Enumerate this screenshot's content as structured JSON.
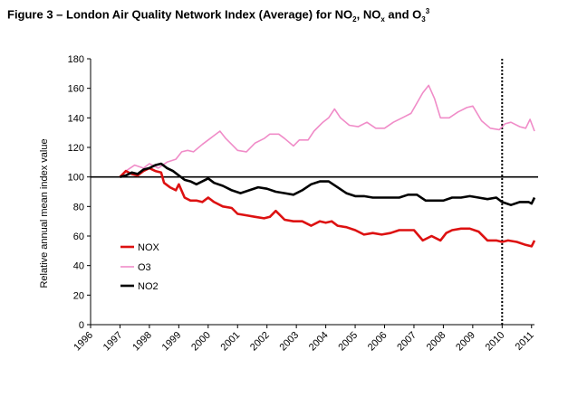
{
  "figure": {
    "title_main": "Figure 3 – London Air Quality Network Index (Average) for NO",
    "title_sub1": "2",
    "title_mid1": ", NO",
    "title_sub2": "x",
    "title_mid2": " and O",
    "title_sub3": "3",
    "title_sup": "3"
  },
  "chart_data": {
    "type": "line",
    "title": "Figure 3 – London Air Quality Network Index (Average) for NO2, NOx and O3",
    "xlabel": "",
    "ylabel": "Relative annual mean index value",
    "xlim": [
      1996,
      2011.1
    ],
    "ylim": [
      0,
      180
    ],
    "yticks": [
      0,
      20,
      40,
      60,
      80,
      100,
      120,
      140,
      160,
      180
    ],
    "xticks": [
      "1996",
      "1997",
      "1998",
      "1999",
      "2000",
      "2001",
      "2002",
      "2003",
      "2004",
      "2005",
      "2006",
      "2007",
      "2008",
      "2009",
      "2010",
      "2011"
    ],
    "reference_line": 100,
    "vertical_marker": 2010,
    "legend_position": "lower-left",
    "grid": false,
    "series": [
      {
        "name": "NOX",
        "color": "#dd1111",
        "x": [
          1997.0,
          1997.2,
          1997.4,
          1997.6,
          1997.8,
          1998.0,
          1998.2,
          1998.4,
          1998.5,
          1998.7,
          1998.9,
          1999.0,
          1999.2,
          1999.4,
          1999.6,
          1999.8,
          2000.0,
          2000.2,
          2000.5,
          2000.8,
          2001.0,
          2001.3,
          2001.6,
          2001.9,
          2002.1,
          2002.3,
          2002.6,
          2002.9,
          2003.2,
          2003.5,
          2003.8,
          2004.0,
          2004.2,
          2004.4,
          2004.7,
          2005.0,
          2005.3,
          2005.6,
          2005.9,
          2006.2,
          2006.5,
          2006.8,
          2007.0,
          2007.3,
          2007.6,
          2007.9,
          2008.1,
          2008.3,
          2008.6,
          2008.9,
          2009.2,
          2009.5,
          2009.8,
          2010.0,
          2010.2,
          2010.5,
          2010.8,
          2011.0,
          2011.1
        ],
        "values": [
          100,
          104,
          102,
          101,
          104,
          106,
          104,
          103,
          96,
          93,
          91,
          95,
          86,
          84,
          84,
          83,
          86,
          83,
          80,
          79,
          75,
          74,
          73,
          72,
          73,
          77,
          71,
          70,
          70,
          67,
          70,
          69,
          70,
          67,
          66,
          64,
          61,
          62,
          61,
          62,
          64,
          64,
          64,
          57,
          60,
          57,
          62,
          64,
          65,
          65,
          63,
          57,
          57,
          56,
          57,
          56,
          54,
          53,
          57
        ]
      },
      {
        "name": "O3",
        "color": "#f08cc8",
        "x": [
          1997.0,
          1997.2,
          1997.5,
          1997.8,
          1998.0,
          1998.3,
          1998.6,
          1998.9,
          1999.1,
          1999.3,
          1999.5,
          1999.8,
          2000.0,
          2000.2,
          2000.4,
          2000.6,
          2000.8,
          2001.0,
          2001.3,
          2001.6,
          2001.9,
          2002.1,
          2002.4,
          2002.6,
          2002.9,
          2003.1,
          2003.4,
          2003.6,
          2003.9,
          2004.1,
          2004.3,
          2004.5,
          2004.8,
          2005.1,
          2005.4,
          2005.7,
          2006.0,
          2006.3,
          2006.6,
          2006.9,
          2007.1,
          2007.3,
          2007.5,
          2007.7,
          2007.9,
          2008.2,
          2008.5,
          2008.8,
          2009.0,
          2009.3,
          2009.6,
          2009.9,
          2010.1,
          2010.3,
          2010.6,
          2010.8,
          2010.95,
          2011.1
        ],
        "values": [
          100,
          104,
          108,
          106,
          109,
          106,
          110,
          112,
          117,
          118,
          117,
          122,
          125,
          128,
          131,
          126,
          122,
          118,
          117,
          123,
          126,
          129,
          129,
          126,
          121,
          125,
          125,
          131,
          137,
          140,
          146,
          140,
          135,
          134,
          137,
          133,
          133,
          137,
          140,
          143,
          150,
          157,
          162,
          153,
          140,
          140,
          144,
          147,
          148,
          138,
          133,
          132,
          136,
          137,
          134,
          133,
          139,
          131
        ]
      },
      {
        "name": "NO2",
        "color": "#000000",
        "x": [
          1997.0,
          1997.2,
          1997.4,
          1997.6,
          1997.8,
          1998.0,
          1998.2,
          1998.4,
          1998.6,
          1998.8,
          1999.0,
          1999.2,
          1999.4,
          1999.6,
          1999.8,
          2000.0,
          2000.2,
          2000.5,
          2000.8,
          2001.1,
          2001.4,
          2001.7,
          2002.0,
          2002.3,
          2002.6,
          2002.9,
          2003.2,
          2003.5,
          2003.8,
          2004.1,
          2004.4,
          2004.7,
          2005.0,
          2005.3,
          2005.6,
          2005.9,
          2006.2,
          2006.5,
          2006.8,
          2007.1,
          2007.4,
          2007.7,
          2008.0,
          2008.3,
          2008.6,
          2008.9,
          2009.2,
          2009.5,
          2009.8,
          2010.0,
          2010.3,
          2010.6,
          2010.9,
          2011.0,
          2011.1
        ],
        "values": [
          100,
          101,
          103,
          102,
          105,
          106,
          108,
          109,
          106,
          104,
          101,
          98,
          97,
          95,
          97,
          99,
          96,
          94,
          91,
          89,
          91,
          93,
          92,
          90,
          89,
          88,
          91,
          95,
          97,
          97,
          93,
          89,
          87,
          87,
          86,
          86,
          86,
          86,
          88,
          88,
          84,
          84,
          84,
          86,
          86,
          87,
          86,
          85,
          86,
          83,
          81,
          83,
          83,
          82,
          86
        ]
      }
    ]
  }
}
